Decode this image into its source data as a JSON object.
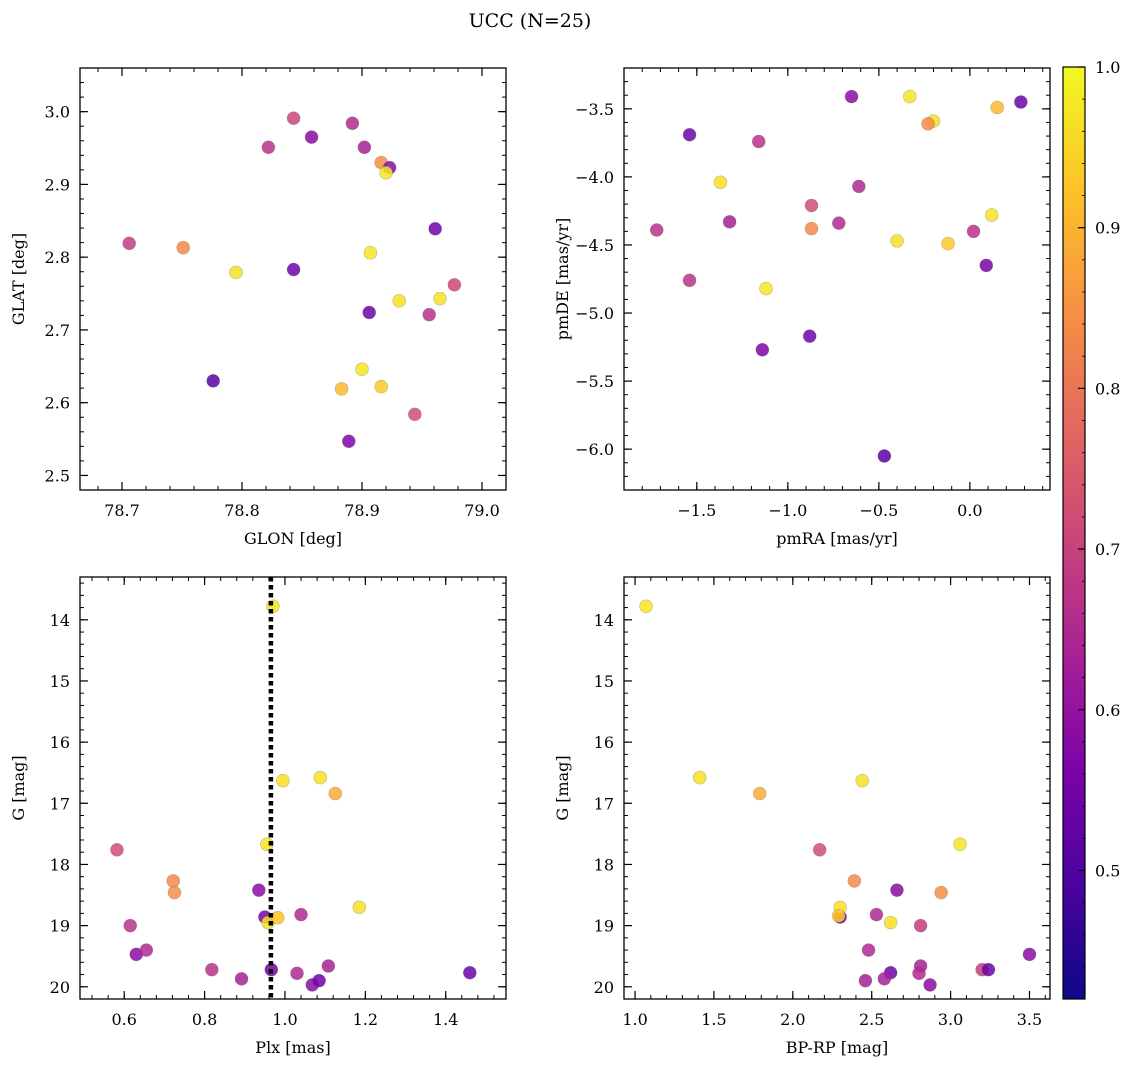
{
  "figure": {
    "title": "UCC (N=25)"
  },
  "colorbar": {
    "colormap": "plasma",
    "range": [
      0.42,
      1.0
    ],
    "ticks": [
      0.5,
      0.6,
      0.7,
      0.8,
      0.9,
      1.0
    ],
    "tick_labels": [
      "0.5",
      "0.6",
      "0.7",
      "0.8",
      "0.9",
      "1.0"
    ]
  },
  "chart_data": [
    {
      "type": "scatter",
      "xlabel": "GLON [deg]",
      "ylabel": "GLAT [deg]",
      "xlim": [
        78.665,
        79.02
      ],
      "ylim": [
        2.48,
        3.06
      ],
      "y_inverted": false,
      "xticks": [
        78.7,
        78.8,
        78.9,
        79.0
      ],
      "xtick_labels": [
        "78.7",
        "78.8",
        "78.9",
        "79.0"
      ],
      "yticks": [
        2.5,
        2.6,
        2.7,
        2.8,
        2.9,
        3.0
      ],
      "ytick_labels": [
        "2.5",
        "2.6",
        "2.7",
        "2.8",
        "2.9",
        "3.0"
      ],
      "points": [
        {
          "x": 78.843,
          "y": 2.991,
          "c": 0.68
        },
        {
          "x": 78.858,
          "y": 2.965,
          "c": 0.55
        },
        {
          "x": 78.892,
          "y": 2.984,
          "c": 0.62
        },
        {
          "x": 78.822,
          "y": 2.951,
          "c": 0.64
        },
        {
          "x": 78.902,
          "y": 2.951,
          "c": 0.6
        },
        {
          "x": 78.916,
          "y": 2.93,
          "c": 0.83
        },
        {
          "x": 78.923,
          "y": 2.923,
          "c": 0.55
        },
        {
          "x": 78.92,
          "y": 2.916,
          "c": 0.97
        },
        {
          "x": 78.961,
          "y": 2.839,
          "c": 0.5
        },
        {
          "x": 78.706,
          "y": 2.819,
          "c": 0.66
        },
        {
          "x": 78.751,
          "y": 2.813,
          "c": 0.82
        },
        {
          "x": 78.907,
          "y": 2.806,
          "c": 0.97
        },
        {
          "x": 78.795,
          "y": 2.779,
          "c": 0.96
        },
        {
          "x": 78.843,
          "y": 2.783,
          "c": 0.5
        },
        {
          "x": 78.977,
          "y": 2.762,
          "c": 0.68
        },
        {
          "x": 78.965,
          "y": 2.743,
          "c": 0.96
        },
        {
          "x": 78.931,
          "y": 2.74,
          "c": 0.96
        },
        {
          "x": 78.906,
          "y": 2.724,
          "c": 0.5
        },
        {
          "x": 78.956,
          "y": 2.721,
          "c": 0.64
        },
        {
          "x": 78.776,
          "y": 2.63,
          "c": 0.47
        },
        {
          "x": 78.9,
          "y": 2.646,
          "c": 0.97
        },
        {
          "x": 78.883,
          "y": 2.619,
          "c": 0.9
        },
        {
          "x": 78.916,
          "y": 2.622,
          "c": 0.93
        },
        {
          "x": 78.944,
          "y": 2.584,
          "c": 0.7
        },
        {
          "x": 78.889,
          "y": 2.547,
          "c": 0.53
        }
      ]
    },
    {
      "type": "scatter",
      "xlabel": "pmRA [mas/yr]",
      "ylabel": "pmDE [mas/yr]",
      "xlim": [
        -1.9,
        0.44
      ],
      "ylim": [
        -6.3,
        -3.2
      ],
      "y_inverted": false,
      "xticks": [
        -1.5,
        -1.0,
        -0.5,
        0.0
      ],
      "xtick_labels": [
        "−1.5",
        "−1.0",
        "−0.5",
        "0.0"
      ],
      "yticks": [
        -6.0,
        -5.5,
        -5.0,
        -4.5,
        -4.0,
        -3.5
      ],
      "ytick_labels": [
        "−6.0",
        "−5.5",
        "−5.0",
        "−4.5",
        "−4.0",
        "−3.5"
      ],
      "points": [
        {
          "x": -0.33,
          "y": -3.41,
          "c": 0.97
        },
        {
          "x": -0.65,
          "y": -3.41,
          "c": 0.55
        },
        {
          "x": 0.28,
          "y": -3.45,
          "c": 0.5
        },
        {
          "x": 0.15,
          "y": -3.49,
          "c": 0.9
        },
        {
          "x": -0.2,
          "y": -3.59,
          "c": 0.96
        },
        {
          "x": -0.23,
          "y": -3.61,
          "c": 0.82
        },
        {
          "x": -1.54,
          "y": -3.69,
          "c": 0.5
        },
        {
          "x": -1.16,
          "y": -3.74,
          "c": 0.64
        },
        {
          "x": -1.37,
          "y": -4.04,
          "c": 0.96
        },
        {
          "x": -0.61,
          "y": -4.07,
          "c": 0.62
        },
        {
          "x": -0.87,
          "y": -4.21,
          "c": 0.7
        },
        {
          "x": 0.12,
          "y": -4.28,
          "c": 0.96
        },
        {
          "x": -1.32,
          "y": -4.33,
          "c": 0.6
        },
        {
          "x": -0.72,
          "y": -4.34,
          "c": 0.62
        },
        {
          "x": -0.87,
          "y": -4.38,
          "c": 0.82
        },
        {
          "x": -1.72,
          "y": -4.39,
          "c": 0.64
        },
        {
          "x": 0.02,
          "y": -4.4,
          "c": 0.64
        },
        {
          "x": -0.4,
          "y": -4.47,
          "c": 0.96
        },
        {
          "x": -0.12,
          "y": -4.49,
          "c": 0.93
        },
        {
          "x": 0.09,
          "y": -4.65,
          "c": 0.52
        },
        {
          "x": -1.54,
          "y": -4.76,
          "c": 0.64
        },
        {
          "x": -1.12,
          "y": -4.82,
          "c": 0.97
        },
        {
          "x": -0.88,
          "y": -5.17,
          "c": 0.5
        },
        {
          "x": -1.14,
          "y": -5.27,
          "c": 0.53
        },
        {
          "x": -0.47,
          "y": -6.05,
          "c": 0.47
        }
      ]
    },
    {
      "type": "scatter",
      "xlabel": "Plx [mas]",
      "ylabel": "G [mag]",
      "xlim": [
        0.49,
        1.55
      ],
      "ylim": [
        20.2,
        13.3
      ],
      "y_inverted": true,
      "xticks": [
        0.6,
        0.8,
        1.0,
        1.2,
        1.4
      ],
      "xtick_labels": [
        "0.6",
        "0.8",
        "1.0",
        "1.2",
        "1.4"
      ],
      "yticks": [
        14,
        15,
        16,
        17,
        18,
        19,
        20
      ],
      "ytick_labels": [
        "14",
        "15",
        "16",
        "17",
        "18",
        "19",
        "20"
      ],
      "vline": {
        "x": 0.965,
        "style": "dotted",
        "color": "#000000"
      },
      "points": [
        {
          "x": 0.97,
          "y": 13.78,
          "c": 0.97
        },
        {
          "x": 0.995,
          "y": 16.63,
          "c": 0.96
        },
        {
          "x": 1.088,
          "y": 16.58,
          "c": 0.96
        },
        {
          "x": 1.125,
          "y": 16.84,
          "c": 0.88
        },
        {
          "x": 0.582,
          "y": 17.76,
          "c": 0.7
        },
        {
          "x": 0.955,
          "y": 17.67,
          "c": 0.97
        },
        {
          "x": 0.722,
          "y": 18.27,
          "c": 0.82
        },
        {
          "x": 0.725,
          "y": 18.46,
          "c": 0.83
        },
        {
          "x": 0.935,
          "y": 18.42,
          "c": 0.55
        },
        {
          "x": 1.185,
          "y": 18.7,
          "c": 0.96
        },
        {
          "x": 0.95,
          "y": 18.86,
          "c": 0.52
        },
        {
          "x": 0.958,
          "y": 18.95,
          "c": 0.96
        },
        {
          "x": 0.982,
          "y": 18.87,
          "c": 0.92
        },
        {
          "x": 1.04,
          "y": 18.82,
          "c": 0.62
        },
        {
          "x": 0.615,
          "y": 19.0,
          "c": 0.64
        },
        {
          "x": 0.63,
          "y": 19.47,
          "c": 0.55
        },
        {
          "x": 0.655,
          "y": 19.4,
          "c": 0.62
        },
        {
          "x": 0.818,
          "y": 19.72,
          "c": 0.64
        },
        {
          "x": 0.892,
          "y": 19.87,
          "c": 0.6
        },
        {
          "x": 0.966,
          "y": 19.72,
          "c": 0.5
        },
        {
          "x": 1.03,
          "y": 19.78,
          "c": 0.62
        },
        {
          "x": 1.068,
          "y": 19.97,
          "c": 0.55
        },
        {
          "x": 1.085,
          "y": 19.9,
          "c": 0.5
        },
        {
          "x": 1.108,
          "y": 19.66,
          "c": 0.6
        },
        {
          "x": 1.46,
          "y": 19.77,
          "c": 0.5
        }
      ]
    },
    {
      "type": "scatter",
      "xlabel": "BP-RP [mag]",
      "ylabel": "G [mag]",
      "xlim": [
        0.93,
        3.63
      ],
      "ylim": [
        20.2,
        13.3
      ],
      "y_inverted": true,
      "xticks": [
        1.0,
        1.5,
        2.0,
        2.5,
        3.0,
        3.5
      ],
      "xtick_labels": [
        "1.0",
        "1.5",
        "2.0",
        "2.5",
        "3.0",
        "3.5"
      ],
      "yticks": [
        14,
        15,
        16,
        17,
        18,
        19,
        20
      ],
      "ytick_labels": [
        "14",
        "15",
        "16",
        "17",
        "18",
        "19",
        "20"
      ],
      "points": [
        {
          "x": 1.07,
          "y": 13.78,
          "c": 0.97
        },
        {
          "x": 1.41,
          "y": 16.58,
          "c": 0.96
        },
        {
          "x": 1.79,
          "y": 16.84,
          "c": 0.88
        },
        {
          "x": 2.44,
          "y": 16.63,
          "c": 0.96
        },
        {
          "x": 2.17,
          "y": 17.76,
          "c": 0.7
        },
        {
          "x": 3.06,
          "y": 17.67,
          "c": 0.97
        },
        {
          "x": 2.39,
          "y": 18.27,
          "c": 0.82
        },
        {
          "x": 2.66,
          "y": 18.42,
          "c": 0.55
        },
        {
          "x": 2.94,
          "y": 18.46,
          "c": 0.83
        },
        {
          "x": 2.3,
          "y": 18.86,
          "c": 0.52
        },
        {
          "x": 2.3,
          "y": 18.7,
          "c": 0.96
        },
        {
          "x": 2.29,
          "y": 18.84,
          "c": 0.93
        },
        {
          "x": 2.53,
          "y": 18.82,
          "c": 0.62
        },
        {
          "x": 2.62,
          "y": 18.95,
          "c": 0.96
        },
        {
          "x": 2.81,
          "y": 19.0,
          "c": 0.66
        },
        {
          "x": 2.48,
          "y": 19.4,
          "c": 0.62
        },
        {
          "x": 3.5,
          "y": 19.47,
          "c": 0.55
        },
        {
          "x": 2.81,
          "y": 19.66,
          "c": 0.6
        },
        {
          "x": 3.2,
          "y": 19.72,
          "c": 0.66
        },
        {
          "x": 3.24,
          "y": 19.72,
          "c": 0.5
        },
        {
          "x": 2.62,
          "y": 19.77,
          "c": 0.5
        },
        {
          "x": 2.8,
          "y": 19.78,
          "c": 0.62
        },
        {
          "x": 2.58,
          "y": 19.87,
          "c": 0.6
        },
        {
          "x": 2.87,
          "y": 19.97,
          "c": 0.55
        },
        {
          "x": 2.46,
          "y": 19.9,
          "c": 0.6
        }
      ]
    }
  ]
}
